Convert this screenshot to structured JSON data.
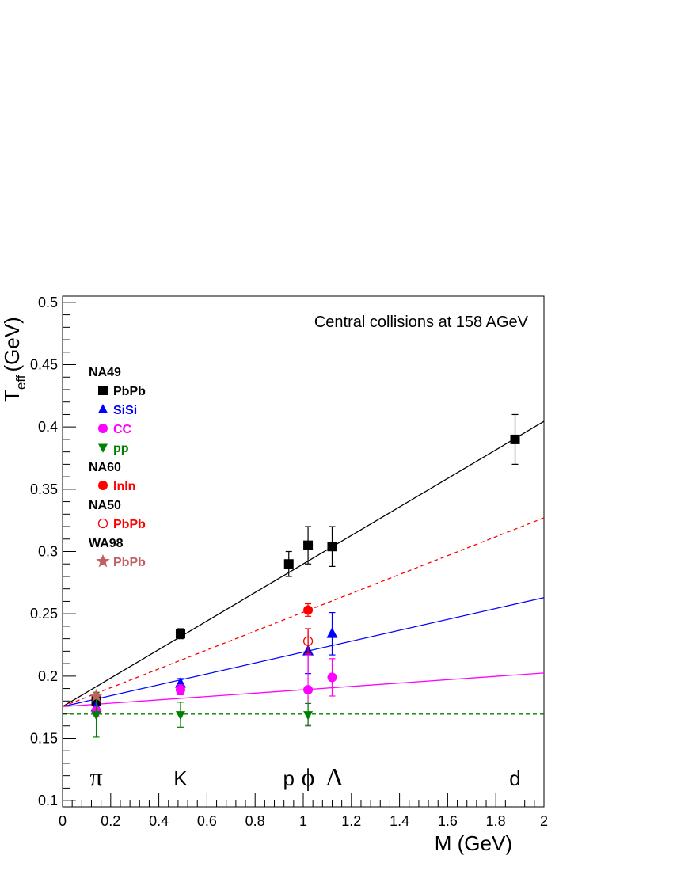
{
  "chart_data": {
    "type": "scatter",
    "annotation": "Central collisions at 158 AGeV",
    "xlabel": "M (GeV)",
    "ylabel_main": "T",
    "ylabel_sub": "eff",
    "ylabel_unit": "(GeV)",
    "xlim": [
      0,
      2
    ],
    "ylim": [
      0.095,
      0.505
    ],
    "x_ticks": [
      "0",
      "0.2",
      "0.4",
      "0.6",
      "0.8",
      "1",
      "1.2",
      "1.4",
      "1.6",
      "1.8",
      "2"
    ],
    "x_tick_values": [
      0,
      0.2,
      0.4,
      0.6,
      0.8,
      1.0,
      1.2,
      1.4,
      1.6,
      1.8,
      2.0
    ],
    "y_ticks": [
      "0.1",
      "0.15",
      "0.2",
      "0.25",
      "0.3",
      "0.35",
      "0.4",
      "0.45",
      "0.5"
    ],
    "y_tick_values": [
      0.1,
      0.15,
      0.2,
      0.25,
      0.3,
      0.35,
      0.4,
      0.45,
      0.5
    ],
    "particle_labels": [
      {
        "text": "π",
        "x": 0.14
      },
      {
        "text": "K",
        "x": 0.49
      },
      {
        "text": "p",
        "x": 0.94
      },
      {
        "text": "ϕ",
        "x": 1.02
      },
      {
        "text": "Λ",
        "x": 1.13
      },
      {
        "text": "d",
        "x": 1.88
      }
    ],
    "legend_groups": [
      {
        "title": "NA49",
        "entries": [
          {
            "label": "PbPb",
            "marker": "square",
            "color": "#000000"
          },
          {
            "label": "SiSi",
            "marker": "triangle-up",
            "color": "#0000ff"
          },
          {
            "label": "CC",
            "marker": "circle",
            "color": "#ff00ff"
          },
          {
            "label": "pp",
            "marker": "triangle-down",
            "color": "#008000"
          }
        ]
      },
      {
        "title": "NA60",
        "entries": [
          {
            "label": "InIn",
            "marker": "circle",
            "color": "#ff0000"
          }
        ]
      },
      {
        "title": "NA50",
        "entries": [
          {
            "label": "PbPb",
            "marker": "open-circle",
            "color": "#ff0000"
          }
        ]
      },
      {
        "title": "WA98",
        "entries": [
          {
            "label": "PbPb",
            "marker": "star",
            "color": "#c06060"
          }
        ]
      }
    ],
    "series": [
      {
        "name": "PbPb",
        "marker": "square",
        "color": "#000000",
        "points": [
          {
            "x": 0.14,
            "y": 0.18,
            "err": 0.005
          },
          {
            "x": 0.49,
            "y": 0.234,
            "err": 0.004
          },
          {
            "x": 0.94,
            "y": 0.29,
            "err": 0.01
          },
          {
            "x": 1.02,
            "y": 0.305,
            "err": 0.015
          },
          {
            "x": 1.12,
            "y": 0.304,
            "err": 0.016
          },
          {
            "x": 1.88,
            "y": 0.39,
            "err": 0.02
          }
        ]
      },
      {
        "name": "SiSi",
        "marker": "triangle-up",
        "color": "#0000ff",
        "points": [
          {
            "x": 0.14,
            "y": 0.175,
            "err": 0.004
          },
          {
            "x": 0.49,
            "y": 0.194,
            "err": 0.004
          },
          {
            "x": 1.02,
            "y": 0.22,
            "err": 0.018
          },
          {
            "x": 1.12,
            "y": 0.234,
            "err": 0.017
          }
        ]
      },
      {
        "name": "CC",
        "marker": "circle",
        "color": "#ff00ff",
        "points": [
          {
            "x": 0.14,
            "y": 0.172,
            "err": 0.004
          },
          {
            "x": 0.49,
            "y": 0.189,
            "err": 0.004
          },
          {
            "x": 1.02,
            "y": 0.189,
            "err": 0.028
          },
          {
            "x": 1.12,
            "y": 0.199,
            "err": 0.015
          }
        ]
      },
      {
        "name": "pp",
        "marker": "triangle-down",
        "color": "#008000",
        "points": [
          {
            "x": 0.14,
            "y": 0.169,
            "err": 0.018
          },
          {
            "x": 0.49,
            "y": 0.169,
            "err": 0.01
          },
          {
            "x": 1.02,
            "y": 0.169,
            "err": 0.009
          }
        ]
      },
      {
        "name": "InIn",
        "marker": "circle",
        "color": "#ff0000",
        "points": [
          {
            "x": 1.02,
            "y": 0.253,
            "err": 0.005
          }
        ]
      },
      {
        "name": "PbPb",
        "marker": "open-circle",
        "color": "#ff0000",
        "points": [
          {
            "x": 1.02,
            "y": 0.228,
            "err": 0.01
          }
        ]
      },
      {
        "name": "PbPb",
        "marker": "star",
        "color": "#c06060",
        "points": [
          {
            "x": 0.14,
            "y": 0.184,
            "err": 0.002
          }
        ]
      }
    ],
    "fit_lines": [
      {
        "color": "#000000",
        "dashed": false,
        "x": [
          0.0,
          2.0
        ],
        "y": [
          0.1755,
          0.4045
        ]
      },
      {
        "color": "#ff0000",
        "dashed": true,
        "x": [
          0.0,
          2.0
        ],
        "y": [
          0.1755,
          0.327
        ]
      },
      {
        "color": "#0000ff",
        "dashed": false,
        "x": [
          0.0,
          2.0
        ],
        "y": [
          0.1755,
          0.263
        ]
      },
      {
        "color": "#ff00ff",
        "dashed": false,
        "x": [
          0.0,
          2.0
        ],
        "y": [
          0.1755,
          0.2025
        ]
      },
      {
        "color": "#008000",
        "dashed": true,
        "x": [
          0.0,
          2.0
        ],
        "y": [
          0.1695,
          0.1695
        ]
      }
    ]
  }
}
